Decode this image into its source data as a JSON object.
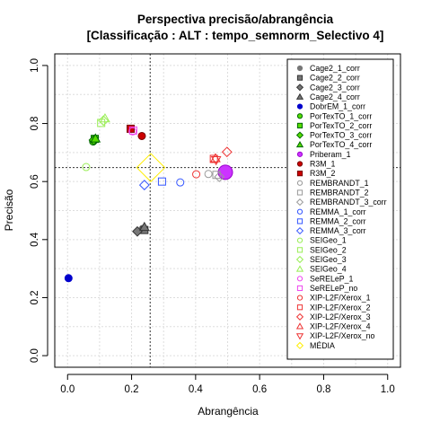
{
  "chart_data": {
    "type": "scatter",
    "title": "Perspectiva precisão/abrangência",
    "subtitle": "[Classificação : ALT : tempo_semnorm_Selectivo 4]",
    "xlabel": "Abrangência",
    "ylabel": "Precisão",
    "xlim": [
      -0.04,
      1.04
    ],
    "ylim": [
      -0.04,
      1.04
    ],
    "xticks": [
      0.0,
      0.2,
      0.4,
      0.6,
      0.8,
      1.0
    ],
    "yticks": [
      0.0,
      0.2,
      0.4,
      0.6,
      0.8,
      1.0
    ],
    "xtick_labels": [
      "0.0",
      "0.2",
      "0.4",
      "0.6",
      "0.8",
      "1.0"
    ],
    "ytick_labels": [
      "0.0",
      "0.2",
      "0.4",
      "0.6",
      "0.8",
      "1.0"
    ],
    "grid": true,
    "legend_position": "right",
    "reference_lines": {
      "x": 0.258,
      "y": 0.648
    },
    "series": [
      {
        "name": "Cage2_1_corr",
        "shape": "circle",
        "color": "#777777",
        "fill": "#777777",
        "x": 0.235,
        "y": 0.437
      },
      {
        "name": "Cage2_2_corr",
        "shape": "square",
        "color": "#333333",
        "fill": "#777777",
        "x": 0.24,
        "y": 0.433
      },
      {
        "name": "Cage2_3_corr",
        "shape": "diamond",
        "color": "#333333",
        "fill": "#777777",
        "x": 0.218,
        "y": 0.428
      },
      {
        "name": "Cage2_4_corr",
        "shape": "triangle",
        "color": "#333333",
        "fill": "#777777",
        "x": 0.24,
        "y": 0.443
      },
      {
        "name": "DobrEM_1_corr",
        "shape": "circle",
        "color": "#0000cc",
        "fill": "#0000cc",
        "x": 0.003,
        "y": 0.267
      },
      {
        "name": "PorTexTO_1_corr",
        "shape": "circle",
        "color": "#006600",
        "fill": "#55dd00",
        "x": 0.08,
        "y": 0.738
      },
      {
        "name": "PorTexTO_2_corr",
        "shape": "square",
        "color": "#006600",
        "fill": "#55dd00",
        "x": 0.085,
        "y": 0.747
      },
      {
        "name": "PorTexTO_3_corr",
        "shape": "diamond",
        "color": "#006600",
        "fill": "#55dd00",
        "x": 0.082,
        "y": 0.743
      },
      {
        "name": "PorTexTO_4_corr",
        "shape": "triangle",
        "color": "#006600",
        "fill": "#55dd00",
        "x": 0.087,
        "y": 0.748
      },
      {
        "name": "Priberam_1",
        "shape": "circle",
        "color": "#9900cc",
        "fill": "#cc33ff",
        "x": 0.493,
        "y": 0.632,
        "size": 8
      },
      {
        "name": "R3M_1",
        "shape": "circle",
        "color": "#770000",
        "fill": "#cc0000",
        "x": 0.232,
        "y": 0.757
      },
      {
        "name": "R3M_2",
        "shape": "square",
        "color": "#770000",
        "fill": "#cc0000",
        "x": 0.197,
        "y": 0.782
      },
      {
        "name": "REMBRANDT_1",
        "shape": "circle",
        "color": "#999999",
        "fill": "none",
        "x": 0.44,
        "y": 0.626
      },
      {
        "name": "REMBRANDT_2",
        "shape": "square",
        "color": "#999999",
        "fill": "none",
        "x": 0.465,
        "y": 0.623
      },
      {
        "name": "REMBRANDT_3_corr",
        "shape": "diamond",
        "color": "#999999",
        "fill": "none",
        "x": 0.474,
        "y": 0.616
      },
      {
        "name": "REMMA_1_corr",
        "shape": "circle",
        "color": "#3355ff",
        "fill": "none",
        "x": 0.352,
        "y": 0.597
      },
      {
        "name": "REMMA_2_corr",
        "shape": "square",
        "color": "#3355ff",
        "fill": "none",
        "x": 0.295,
        "y": 0.6
      },
      {
        "name": "REMMA_3_corr",
        "shape": "diamond",
        "color": "#3355ff",
        "fill": "none",
        "x": 0.24,
        "y": 0.588
      },
      {
        "name": "SEIGeo_1",
        "shape": "circle",
        "color": "#99ee55",
        "fill": "none",
        "x": 0.058,
        "y": 0.65
      },
      {
        "name": "SEIGeo_2",
        "shape": "square",
        "color": "#99ee55",
        "fill": "none",
        "x": 0.105,
        "y": 0.802
      },
      {
        "name": "SEIGeo_3",
        "shape": "diamond",
        "color": "#99ee55",
        "fill": "none",
        "x": 0.112,
        "y": 0.81
      },
      {
        "name": "SEIGeo_4",
        "shape": "triangle",
        "color": "#99ee55",
        "fill": "none",
        "x": 0.117,
        "y": 0.817
      },
      {
        "name": "SeRELeP_1",
        "shape": "circle",
        "color": "#ee44ee",
        "fill": "none",
        "x": 0.203,
        "y": 0.773
      },
      {
        "name": "SeRELeP_no",
        "shape": "square",
        "color": "#ee44ee",
        "fill": "none",
        "x": 0.205,
        "y": 0.776
      },
      {
        "name": "XIP-L2F/Xerox_1",
        "shape": "circle",
        "color": "#ee3333",
        "fill": "none",
        "x": 0.402,
        "y": 0.625
      },
      {
        "name": "XIP-L2F/Xerox_2",
        "shape": "square",
        "color": "#ee3333",
        "fill": "none",
        "x": 0.457,
        "y": 0.678
      },
      {
        "name": "XIP-L2F/Xerox_3",
        "shape": "diamond",
        "color": "#ee3333",
        "fill": "none",
        "x": 0.498,
        "y": 0.702
      },
      {
        "name": "XIP-L2F/Xerox_4",
        "shape": "triangle",
        "color": "#ee3333",
        "fill": "none",
        "x": 0.462,
        "y": 0.68
      },
      {
        "name": "XIP-L2F/Xerox_no",
        "shape": "triangle-down",
        "color": "#ee3333",
        "fill": "none",
        "x": 0.464,
        "y": 0.674
      },
      {
        "name": "MÉDIA",
        "shape": "diamond",
        "color": "#ffee00",
        "fill": "none",
        "x": 0.26,
        "y": 0.648,
        "size": 12
      }
    ]
  }
}
